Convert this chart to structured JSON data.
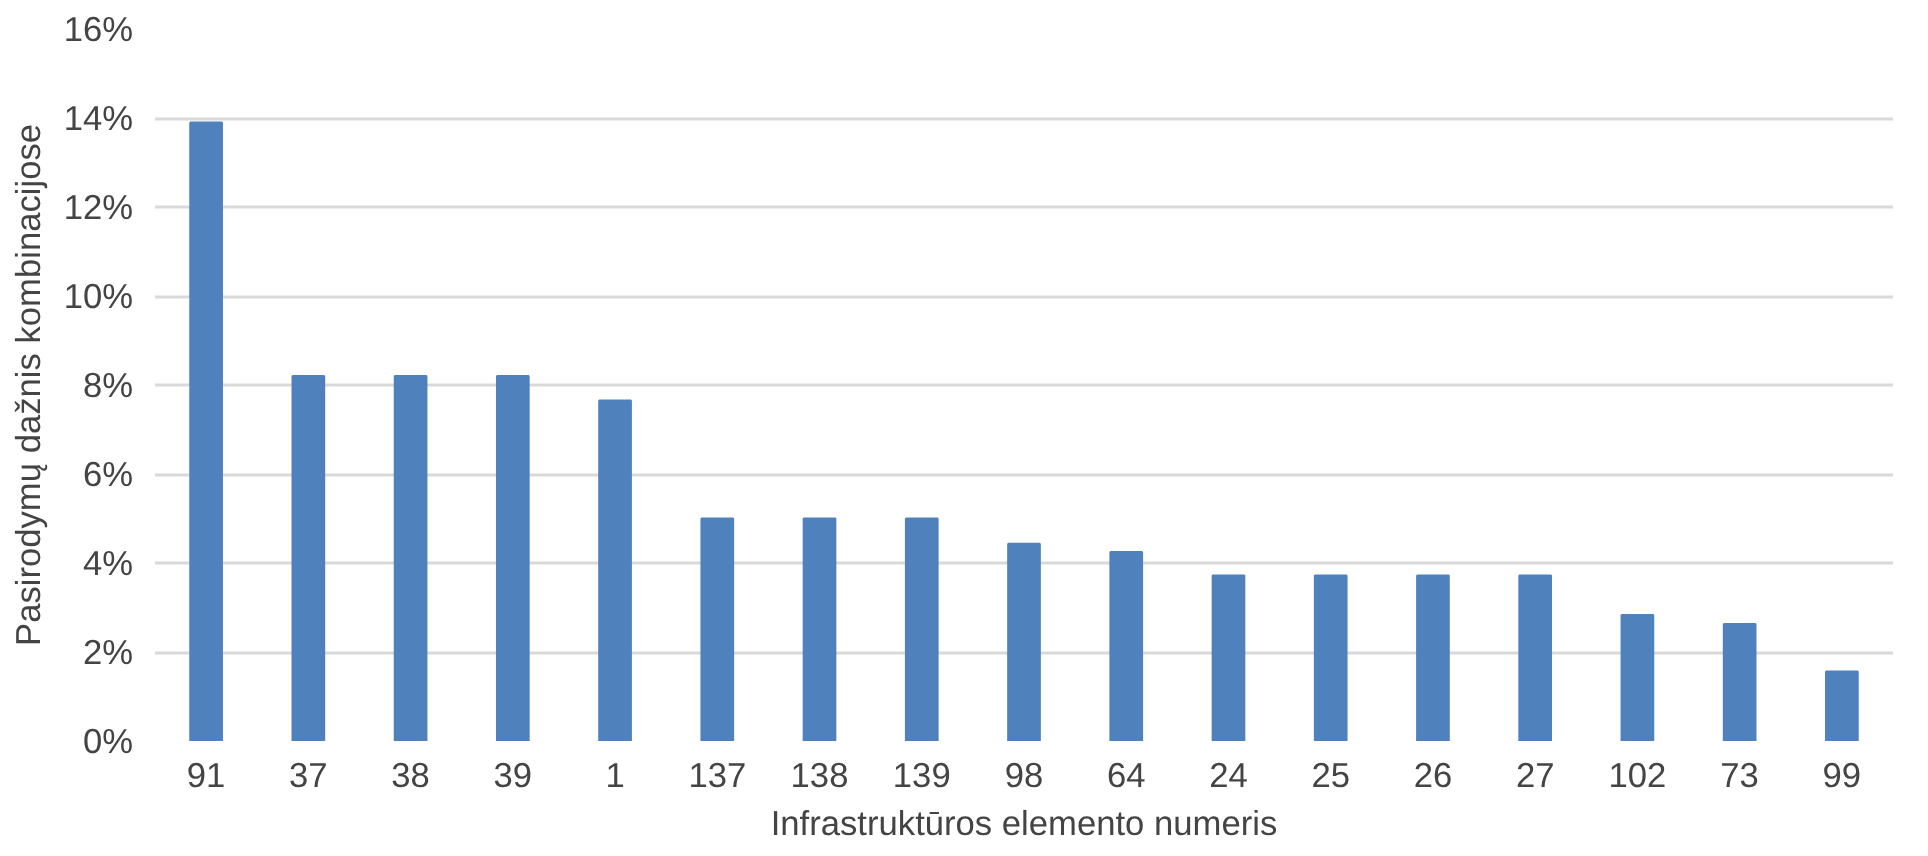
{
  "chart_data": {
    "type": "bar",
    "xlabel": "Infrastruktūros elemento numeris",
    "ylabel": "Pasirodymų dažnis kombinacijose",
    "categories": [
      "91",
      "37",
      "38",
      "39",
      "1",
      "137",
      "138",
      "139",
      "98",
      "64",
      "24",
      "25",
      "26",
      "27",
      "102",
      "73",
      "99"
    ],
    "values": [
      13.9,
      8.2,
      8.2,
      8.2,
      7.65,
      5.0,
      5.0,
      5.0,
      4.43,
      4.25,
      3.72,
      3.72,
      3.72,
      3.72,
      2.83,
      2.63,
      1.56
    ],
    "color": "#4f81bd",
    "ylim": [
      0,
      16
    ],
    "yticks": [
      {
        "value": 0,
        "label": "0%"
      },
      {
        "value": 2,
        "label": "2%"
      },
      {
        "value": 4,
        "label": "4%"
      },
      {
        "value": 6,
        "label": "6%"
      },
      {
        "value": 8,
        "label": "8%"
      },
      {
        "value": 10,
        "label": "10%"
      },
      {
        "value": 12,
        "label": "12%"
      },
      {
        "value": 14,
        "label": "14%"
      },
      {
        "value": 16,
        "label": "16%"
      }
    ],
    "grid": "y"
  }
}
